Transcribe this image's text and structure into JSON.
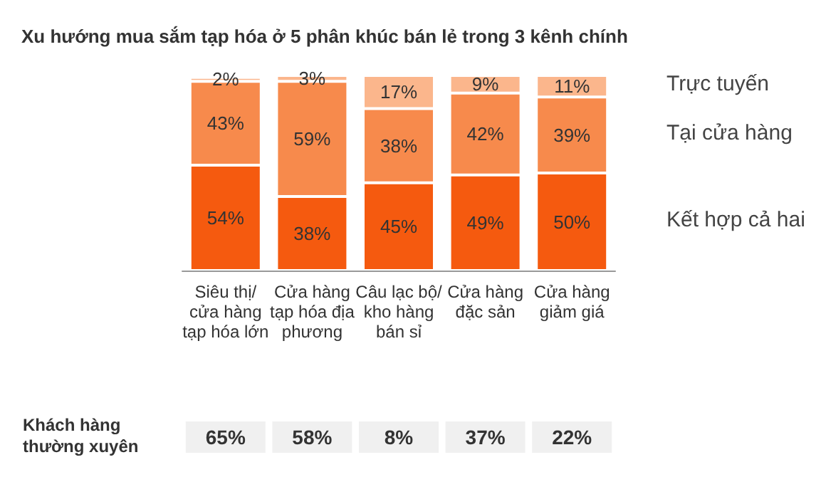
{
  "chart_data": {
    "type": "bar",
    "stacked": true,
    "legend": false,
    "grid": false,
    "title": "Xu hướng mua sắm tạp hóa ở 5 phân khúc bán lẻ trong 3 kênh chính",
    "categories": [
      "Siêu thị/\ncửa hàng\ntạp hóa lớn",
      "Cửa hàng\ntạp hóa địa\nphương",
      "Câu lạc bộ/\nkho hàng\nbán sỉ",
      "Cửa hàng\nđặc sản",
      "Cửa hàng\ngiảm giá"
    ],
    "series": [
      {
        "name": "Kết hợp cả hai",
        "color": "#f55a0f",
        "values": [
          54,
          38,
          45,
          49,
          50
        ],
        "value_labels": [
          "54%",
          "38%",
          "45%",
          "49%",
          "50%"
        ]
      },
      {
        "name": "Tại cửa hàng",
        "color": "#f78a4c",
        "values": [
          43,
          59,
          38,
          42,
          39
        ],
        "value_labels": [
          "43%",
          "59%",
          "38%",
          "42%",
          "39%"
        ]
      },
      {
        "name": "Trực tuyến",
        "color": "#fbb68c",
        "values": [
          2,
          3,
          17,
          9,
          11
        ],
        "value_labels": [
          "2%",
          "3%",
          "17%",
          "9%",
          "11%"
        ]
      }
    ],
    "annotations": [
      "Khách hàng\nthường xuyên",
      "65%",
      "58%",
      "8%",
      "37%",
      "22%"
    ]
  }
}
